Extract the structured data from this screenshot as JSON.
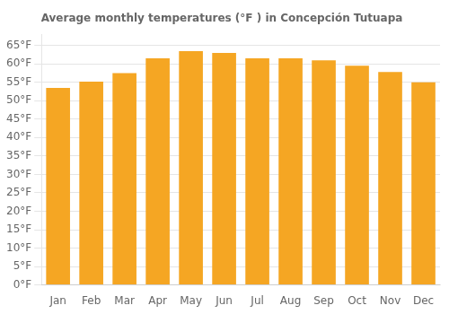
{
  "chart_data": {
    "type": "bar",
    "title": "Average monthly temperatures (°F ) in Concepción Tutuapa",
    "categories": [
      "Jan",
      "Feb",
      "Mar",
      "Apr",
      "May",
      "Jun",
      "Jul",
      "Aug",
      "Sep",
      "Oct",
      "Nov",
      "Dec"
    ],
    "values": [
      53.5,
      55.2,
      57.5,
      61.5,
      63.5,
      63.0,
      61.5,
      61.5,
      61.0,
      59.5,
      57.8,
      55.0
    ],
    "color": "#F5A623",
    "ylim": [
      0,
      68
    ],
    "yticks": [
      {
        "value": 0,
        "label": "0°F"
      },
      {
        "value": 5,
        "label": "5°F"
      },
      {
        "value": 10,
        "label": "10°F"
      },
      {
        "value": 15,
        "label": "15°F"
      },
      {
        "value": 20,
        "label": "20°F"
      },
      {
        "value": 25,
        "label": "25°F"
      },
      {
        "value": 30,
        "label": "30°F"
      },
      {
        "value": 35,
        "label": "35°F"
      },
      {
        "value": 40,
        "label": "40°F"
      },
      {
        "value": 45,
        "label": "45°F"
      },
      {
        "value": 50,
        "label": "50°F"
      },
      {
        "value": 55,
        "label": "55°F"
      },
      {
        "value": 60,
        "label": "60°F"
      },
      {
        "value": 65,
        "label": "65°F"
      }
    ],
    "grid": true
  }
}
